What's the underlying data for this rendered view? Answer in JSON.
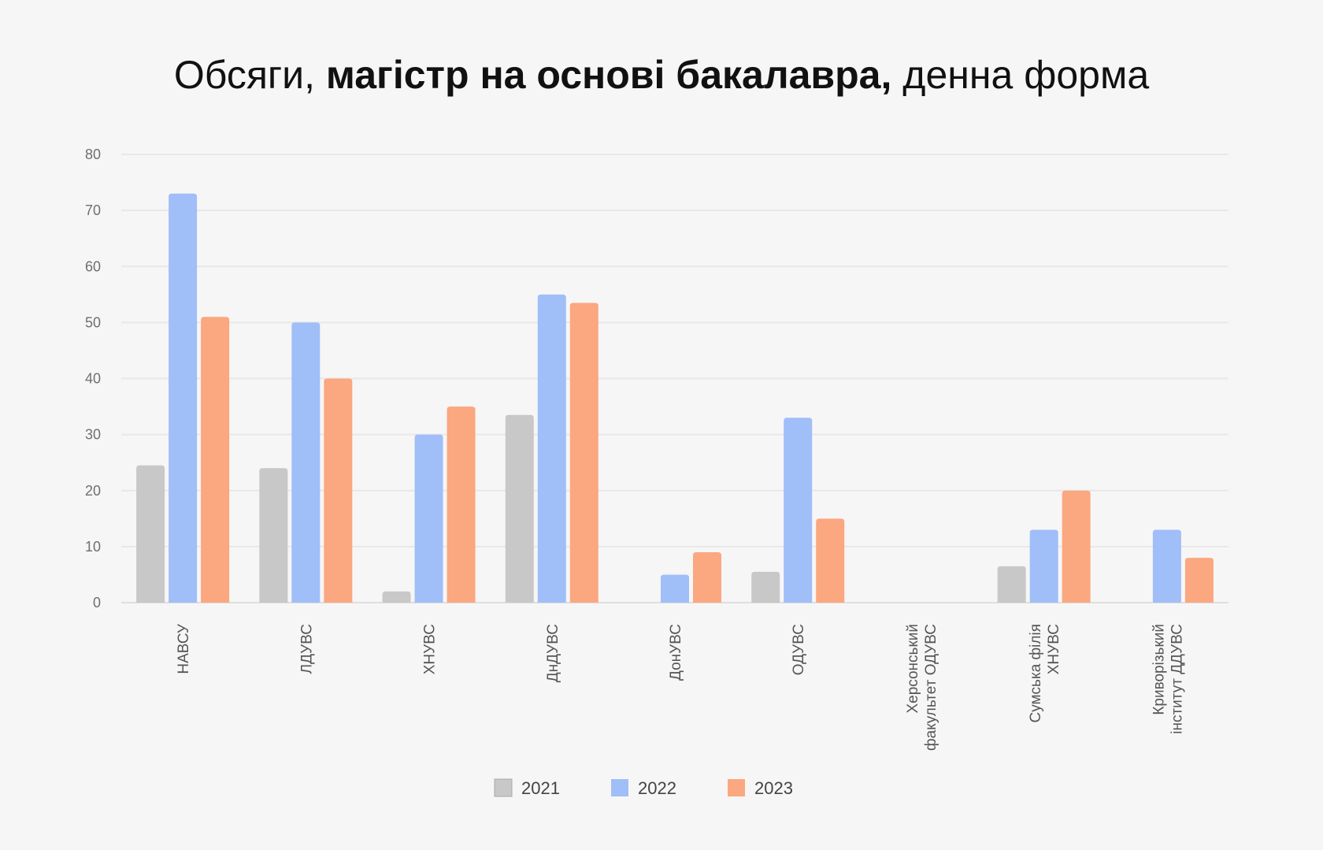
{
  "chart_data": {
    "type": "bar",
    "title": {
      "part1": "Обсяги, ",
      "part2": "магістр на основі бакалавра,",
      "part3": " денна форма"
    },
    "xlabel": "",
    "ylabel": "",
    "ylim": [
      0,
      80
    ],
    "yticks": [
      0,
      10,
      20,
      30,
      40,
      50,
      60,
      70,
      80
    ],
    "grid": true,
    "legend_position": "bottom",
    "categories": [
      [
        "НАВСУ"
      ],
      [
        "ЛДУВС"
      ],
      [
        "ХНУВС"
      ],
      [
        "ДнДУВС"
      ],
      [
        "ДонУВС"
      ],
      [
        "ОДУВС"
      ],
      [
        "Херсонський",
        "факультет ОДУВС"
      ],
      [
        "Сумська філія",
        "ХНУВС"
      ],
      [
        "Криворізький",
        "інститут ДДУВС"
      ]
    ],
    "series": [
      {
        "name": "2021",
        "color": "#c8c8c8",
        "values": [
          24.5,
          24,
          2,
          33.5,
          null,
          5.5,
          null,
          6.5,
          null
        ]
      },
      {
        "name": "2022",
        "color": "#a0bef8",
        "values": [
          73,
          50,
          30,
          55,
          5,
          33,
          null,
          13,
          13
        ]
      },
      {
        "name": "2023",
        "color": "#fba780",
        "values": [
          51,
          40,
          35,
          53.5,
          9,
          15,
          null,
          20,
          8
        ]
      }
    ]
  }
}
